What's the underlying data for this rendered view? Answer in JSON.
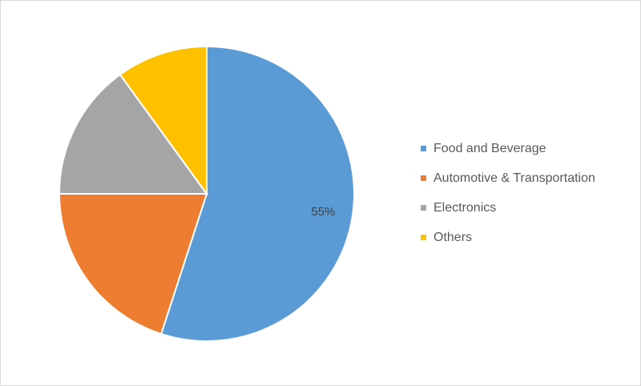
{
  "chart_data": {
    "type": "pie",
    "categories": [
      "Food and Beverage",
      "Automotive & Transportation",
      "Electronics",
      "Others"
    ],
    "values": [
      55,
      20,
      15,
      10
    ],
    "colors": [
      "#5b9bd5",
      "#ed7d31",
      "#a5a5a5",
      "#ffc000"
    ],
    "data_labels": [
      "55%",
      "",
      "",
      ""
    ],
    "legend_position": "right",
    "start_angle_deg": 0,
    "direction": "clockwise"
  }
}
